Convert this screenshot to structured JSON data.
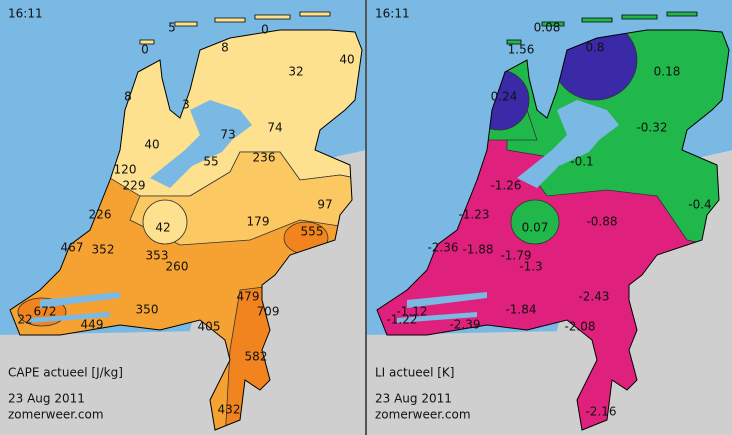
{
  "panels": [
    {
      "time": "16:11",
      "title": "CAPE actueel [J/kg]",
      "date": "23 Aug 2011",
      "site": "zomerweer.com",
      "values": [
        "5",
        "0",
        "8",
        "0",
        "32",
        "40",
        "8",
        "3",
        "73",
        "74",
        "40",
        "55",
        "236",
        "120",
        "229",
        "97",
        "226",
        "179",
        "42",
        "555",
        "467",
        "352",
        "353",
        "260",
        "479",
        "350",
        "709",
        "672",
        "22",
        "449",
        "405",
        "582",
        "432"
      ]
    },
    {
      "time": "16:11",
      "title": "LI actueel [K]",
      "date": "23 Aug 2011",
      "site": "zomerweer.com",
      "values": [
        "0.08",
        "1.56",
        "0.8",
        "0.18",
        "0.24",
        "-0.32",
        "-0.1",
        "-1.26",
        "-1.23",
        "0.07",
        "-0.88",
        "-0.4",
        "-2.36",
        "-1.88",
        "-1.79",
        "-1.3",
        "-2.43",
        "-1.84",
        "-2.08",
        "-1.12",
        "-1.22",
        "-2.39",
        "-2.16"
      ]
    }
  ]
}
